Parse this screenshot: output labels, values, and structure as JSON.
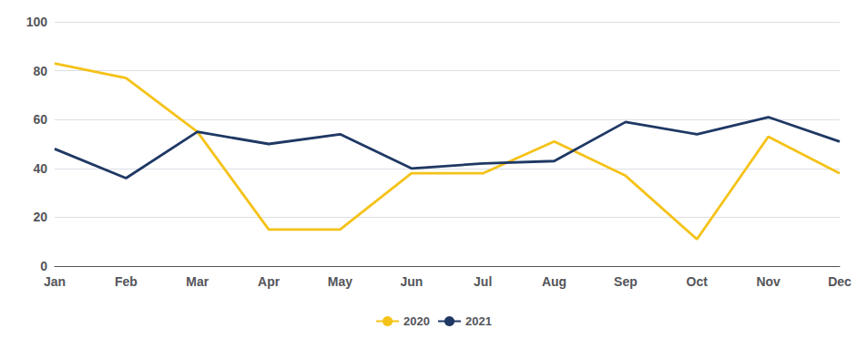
{
  "chart_data": {
    "type": "line",
    "categories": [
      "Jan",
      "Feb",
      "Mar",
      "Apr",
      "May",
      "Jun",
      "Jul",
      "Aug",
      "Sep",
      "Oct",
      "Nov",
      "Dec"
    ],
    "series": [
      {
        "name": "2020",
        "color": "#F5C218",
        "values": [
          83,
          77,
          55,
          15,
          15,
          38,
          38,
          51,
          37,
          11,
          53,
          38
        ]
      },
      {
        "name": "2021",
        "color": "#1F3864",
        "values": [
          48,
          36,
          55,
          50,
          54,
          40,
          42,
          43,
          59,
          54,
          61,
          51
        ]
      }
    ],
    "ylim": [
      0,
      100
    ],
    "yticks": [
      0,
      20,
      40,
      60,
      80,
      100
    ],
    "grid": true,
    "legend": "bottom"
  }
}
